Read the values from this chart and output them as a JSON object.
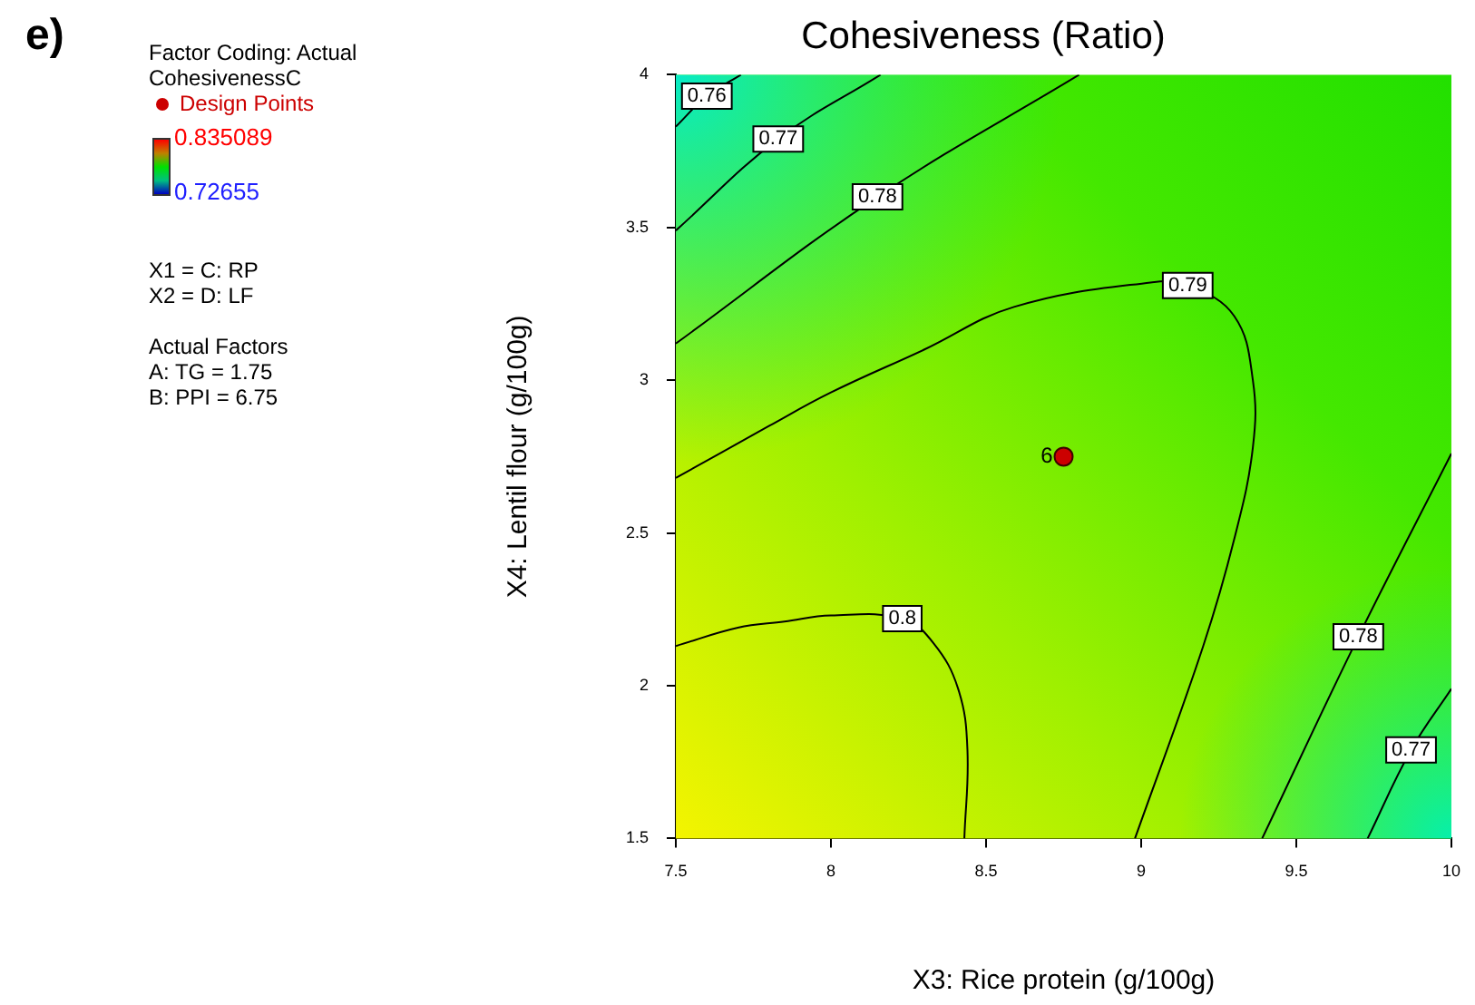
{
  "chart_data": {
    "type": "line",
    "title": "Cohesiveness (Ratio)",
    "xlabel": "X3: Rice protein (g/100g)",
    "ylabel": "X4: Lentil flour (g/100g)",
    "clabel": "CohesivenessC",
    "xlim": [
      7.5,
      10
    ],
    "xticks": [
      7.5,
      8,
      8.5,
      9,
      9.5,
      10
    ],
    "ylim": [
      1.5,
      4
    ],
    "yticks": [
      1.5,
      2,
      2.5,
      3,
      3.5,
      4
    ],
    "clim": [
      0.72655,
      0.835089
    ],
    "cticks": [
      0.72655,
      0.835089
    ],
    "marker": "none",
    "line_style": "solid",
    "legend": "left",
    "series": [
      {
        "name": "0.76",
        "color": "#000000",
        "x": [
          7.5,
          7.6,
          7.71
        ],
        "values": [
          3.83,
          3.93,
          4
        ]
      },
      {
        "name": "0.77",
        "color": "#000000",
        "x": [
          7.5,
          7.83,
          8.16
        ],
        "values": [
          3.49,
          3.79,
          4
        ]
      },
      {
        "name": "0.78",
        "color": "#000000",
        "x": [
          7.5,
          8.15,
          8.8
        ],
        "values": [
          3.12,
          3.6,
          4
        ]
      },
      {
        "name": "0.79",
        "color": "#000000",
        "x": [
          7.5,
          7.8,
          8.0,
          8.3,
          8.59,
          9.03,
          9.15,
          9.3,
          9.36,
          9.36,
          9.3,
          9.2,
          8.98
        ],
        "values": [
          2.68,
          2.85,
          2.96,
          3.1,
          3.24,
          3.32,
          3.31,
          3.21,
          3.0,
          2.78,
          2.48,
          2.13,
          1.5
        ]
      },
      {
        "name": "0.8",
        "color": "#000000",
        "x": [
          7.5,
          7.7,
          7.85,
          8.0,
          8.23,
          8.33,
          8.41,
          8.44,
          8.43
        ],
        "values": [
          2.13,
          2.19,
          2.21,
          2.23,
          2.22,
          2.14,
          1.99,
          1.79,
          1.5
        ]
      },
      {
        "name": "0.78",
        "color": "#000000",
        "x": [
          9.39,
          9.7,
          10
        ],
        "values": [
          1.5,
          2.16,
          2.76
        ]
      },
      {
        "name": "0.77",
        "color": "#000000",
        "x": [
          9.73,
          9.87,
          10
        ],
        "values": [
          1.5,
          1.79,
          1.99
        ]
      },
      {
        "name": "Design Points",
        "type": "scatter",
        "marker": "circle",
        "color": "#cc0000",
        "x": [
          8.75
        ],
        "values": [
          2.75
        ]
      }
    ],
    "annotations": [
      "e)",
      "Factor Coding: Actual",
      "X1 = C: RP",
      "X2 = D: LF",
      "Actual Factors",
      "A: TG = 1.75",
      "B: PPI = 6.75",
      {
        "text": "6",
        "x": 8.75,
        "y": 2.75
      }
    ]
  }
}
